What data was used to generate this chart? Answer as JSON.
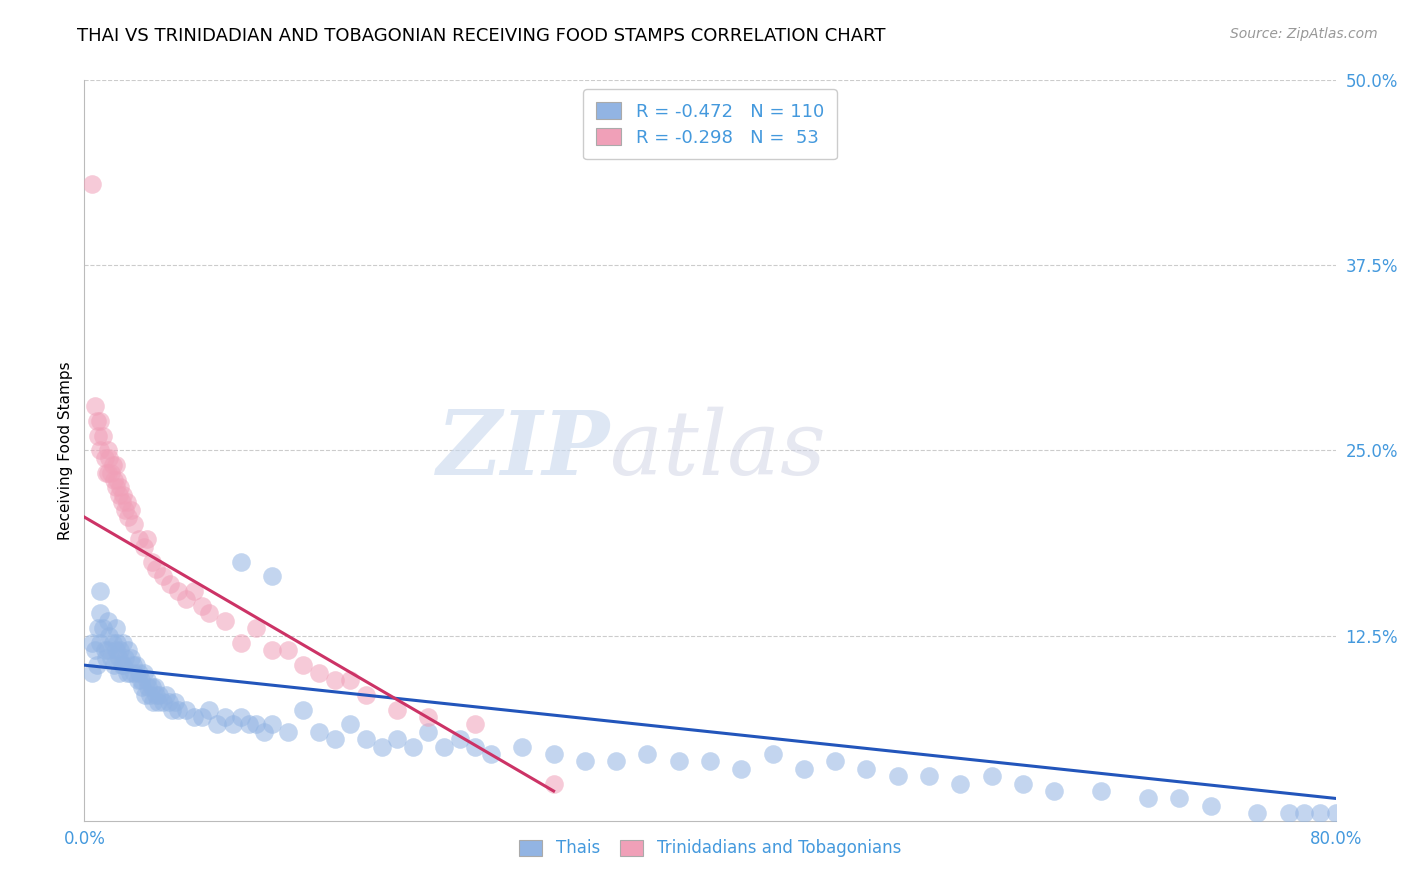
{
  "title": "THAI VS TRINIDADIAN AND TOBAGONIAN RECEIVING FOOD STAMPS CORRELATION CHART",
  "source": "Source: ZipAtlas.com",
  "ylabel": "Receiving Food Stamps",
  "xlim": [
    0.0,
    0.8
  ],
  "ylim": [
    0.0,
    0.5
  ],
  "yticks": [
    0.0,
    0.125,
    0.25,
    0.375,
    0.5
  ],
  "yticklabels": [
    "",
    "12.5%",
    "25.0%",
    "37.5%",
    "50.0%"
  ],
  "blue_R": -0.472,
  "blue_N": 110,
  "pink_R": -0.298,
  "pink_N": 53,
  "blue_color": "#92b4e3",
  "pink_color": "#f0a0b8",
  "blue_line_color": "#2255bb",
  "pink_line_color": "#cc3366",
  "legend_label_blue": "Thais",
  "legend_label_pink": "Trinidadians and Tobagonians",
  "watermark_zip": "ZIP",
  "watermark_atlas": "atlas",
  "title_fontsize": 13,
  "axis_label_fontsize": 11,
  "tick_fontsize": 12,
  "source_fontsize": 10,
  "blue_line_x0": 0.0,
  "blue_line_y0": 0.105,
  "blue_line_x1": 0.8,
  "blue_line_y1": 0.015,
  "pink_line_x0": 0.0,
  "pink_line_y0": 0.205,
  "pink_line_x1": 0.3,
  "pink_line_y1": 0.02,
  "blue_points_x": [
    0.005,
    0.005,
    0.007,
    0.008,
    0.009,
    0.01,
    0.01,
    0.01,
    0.012,
    0.013,
    0.014,
    0.015,
    0.015,
    0.016,
    0.017,
    0.018,
    0.019,
    0.02,
    0.02,
    0.021,
    0.022,
    0.022,
    0.023,
    0.024,
    0.025,
    0.025,
    0.026,
    0.027,
    0.028,
    0.029,
    0.03,
    0.031,
    0.032,
    0.033,
    0.034,
    0.035,
    0.036,
    0.037,
    0.038,
    0.039,
    0.04,
    0.041,
    0.042,
    0.043,
    0.044,
    0.045,
    0.046,
    0.047,
    0.048,
    0.05,
    0.052,
    0.054,
    0.056,
    0.058,
    0.06,
    0.065,
    0.07,
    0.075,
    0.08,
    0.085,
    0.09,
    0.095,
    0.1,
    0.105,
    0.11,
    0.115,
    0.12,
    0.13,
    0.14,
    0.15,
    0.16,
    0.17,
    0.18,
    0.19,
    0.2,
    0.21,
    0.22,
    0.23,
    0.24,
    0.25,
    0.26,
    0.28,
    0.3,
    0.32,
    0.34,
    0.36,
    0.38,
    0.4,
    0.42,
    0.44,
    0.46,
    0.48,
    0.5,
    0.52,
    0.54,
    0.56,
    0.58,
    0.6,
    0.62,
    0.65,
    0.68,
    0.7,
    0.72,
    0.75,
    0.77,
    0.78,
    0.79,
    0.8,
    0.1,
    0.12
  ],
  "blue_points_y": [
    0.12,
    0.1,
    0.115,
    0.105,
    0.13,
    0.155,
    0.14,
    0.12,
    0.13,
    0.115,
    0.11,
    0.135,
    0.115,
    0.125,
    0.11,
    0.12,
    0.105,
    0.13,
    0.115,
    0.12,
    0.11,
    0.1,
    0.115,
    0.105,
    0.12,
    0.105,
    0.11,
    0.1,
    0.115,
    0.1,
    0.11,
    0.105,
    0.1,
    0.105,
    0.095,
    0.1,
    0.095,
    0.09,
    0.1,
    0.085,
    0.095,
    0.09,
    0.085,
    0.09,
    0.08,
    0.09,
    0.085,
    0.08,
    0.085,
    0.08,
    0.085,
    0.08,
    0.075,
    0.08,
    0.075,
    0.075,
    0.07,
    0.07,
    0.075,
    0.065,
    0.07,
    0.065,
    0.07,
    0.065,
    0.065,
    0.06,
    0.065,
    0.06,
    0.075,
    0.06,
    0.055,
    0.065,
    0.055,
    0.05,
    0.055,
    0.05,
    0.06,
    0.05,
    0.055,
    0.05,
    0.045,
    0.05,
    0.045,
    0.04,
    0.04,
    0.045,
    0.04,
    0.04,
    0.035,
    0.045,
    0.035,
    0.04,
    0.035,
    0.03,
    0.03,
    0.025,
    0.03,
    0.025,
    0.02,
    0.02,
    0.015,
    0.015,
    0.01,
    0.005,
    0.005,
    0.005,
    0.005,
    0.005,
    0.175,
    0.165
  ],
  "pink_points_x": [
    0.005,
    0.007,
    0.008,
    0.009,
    0.01,
    0.01,
    0.012,
    0.013,
    0.014,
    0.015,
    0.015,
    0.016,
    0.017,
    0.018,
    0.019,
    0.02,
    0.02,
    0.021,
    0.022,
    0.023,
    0.024,
    0.025,
    0.026,
    0.027,
    0.028,
    0.03,
    0.032,
    0.035,
    0.038,
    0.04,
    0.043,
    0.046,
    0.05,
    0.055,
    0.06,
    0.065,
    0.07,
    0.075,
    0.08,
    0.09,
    0.1,
    0.11,
    0.12,
    0.13,
    0.14,
    0.15,
    0.16,
    0.17,
    0.18,
    0.2,
    0.22,
    0.25,
    0.3
  ],
  "pink_points_y": [
    0.43,
    0.28,
    0.27,
    0.26,
    0.27,
    0.25,
    0.26,
    0.245,
    0.235,
    0.25,
    0.235,
    0.245,
    0.235,
    0.24,
    0.23,
    0.24,
    0.225,
    0.23,
    0.22,
    0.225,
    0.215,
    0.22,
    0.21,
    0.215,
    0.205,
    0.21,
    0.2,
    0.19,
    0.185,
    0.19,
    0.175,
    0.17,
    0.165,
    0.16,
    0.155,
    0.15,
    0.155,
    0.145,
    0.14,
    0.135,
    0.12,
    0.13,
    0.115,
    0.115,
    0.105,
    0.1,
    0.095,
    0.095,
    0.085,
    0.075,
    0.07,
    0.065,
    0.025
  ]
}
